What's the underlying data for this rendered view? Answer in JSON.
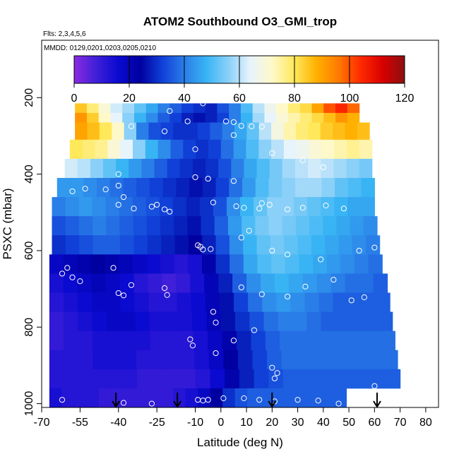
{
  "chart_data": {
    "type": "heatmap",
    "title": "ATOM2 Southbound O3_GMI_trop",
    "subtitle_flights": "Flts: 2,3,4,5,6",
    "subtitle_dates": "MMDD: 0129,0201,0203,0205,0210",
    "xlabel": "Latitude (deg N)",
    "ylabel": "PSXC (mbar)",
    "xlim": [
      -70,
      85
    ],
    "ylim": [
      1010,
      50
    ],
    "x_ticks": [
      -70,
      -55,
      -40,
      -25,
      -10,
      0,
      10,
      20,
      30,
      40,
      50,
      60,
      70,
      80
    ],
    "x_tick_labels": [
      "-70",
      "-55",
      "-40",
      "-25",
      "-10",
      "0",
      "10",
      "20",
      "30",
      "40",
      "50",
      "60",
      "70",
      "80"
    ],
    "y_ticks": [
      200,
      400,
      600,
      800,
      1000
    ],
    "y_tick_labels": [
      "200",
      "400",
      "600",
      "800",
      "1000"
    ],
    "colorbar": {
      "min": 0,
      "max": 120,
      "ticks": [
        0,
        20,
        40,
        60,
        80,
        100,
        120
      ],
      "tick_labels": [
        "0",
        "20",
        "40",
        "60",
        "80",
        "100",
        "120"
      ],
      "colors": [
        "#8a2be2",
        "#3f1fd8",
        "#0a0ad0",
        "#0000a0",
        "#1040d8",
        "#2a7ee8",
        "#38b4f4",
        "#8ad0f8",
        "#e8f4fc",
        "#fff8c8",
        "#ffe85a",
        "#ffb000",
        "#ff7a00",
        "#ff2a00",
        "#d80000",
        "#8b1010"
      ]
    },
    "legend": "colorbar-top",
    "grid": false,
    "arrows_latitude": [
      -41,
      -17,
      20,
      61
    ],
    "layers": [
      {
        "p_top": 215,
        "p_bottom": 240,
        "lat_start": -57,
        "lat_end": 54,
        "values": [
          85,
          78,
          70,
          62,
          58,
          52,
          46,
          40,
          36,
          32,
          30,
          28,
          34,
          40,
          50,
          60,
          66,
          72,
          78,
          82,
          90,
          100,
          105,
          98
        ]
      },
      {
        "p_top": 240,
        "p_bottom": 265,
        "lat_start": -57,
        "lat_end": 54,
        "values": [
          92,
          84,
          72,
          64,
          56,
          48,
          42,
          36,
          32,
          28,
          26,
          28,
          32,
          40,
          48,
          58,
          64,
          70,
          74,
          78,
          82,
          86,
          92,
          88
        ]
      },
      {
        "p_top": 265,
        "p_bottom": 310,
        "lat_start": -57,
        "lat_end": 58,
        "values": [
          90,
          86,
          80,
          72,
          56,
          40,
          34,
          32,
          30,
          30,
          32,
          36,
          40,
          46,
          52,
          60,
          68,
          74,
          78,
          80,
          84,
          86,
          88,
          86
        ]
      },
      {
        "p_top": 310,
        "p_bottom": 360,
        "lat_start": -59,
        "lat_end": 59,
        "values": [
          80,
          78,
          76,
          70,
          64,
          56,
          48,
          42,
          36,
          32,
          30,
          32,
          38,
          44,
          50,
          56,
          60,
          64,
          66,
          70,
          72,
          74,
          76,
          74
        ]
      },
      {
        "p_top": 360,
        "p_bottom": 410,
        "lat_start": -61,
        "lat_end": 59,
        "values": [
          62,
          60,
          56,
          52,
          48,
          44,
          40,
          36,
          32,
          30,
          28,
          30,
          34,
          40,
          46,
          50,
          54,
          58,
          60,
          62,
          60,
          58,
          56,
          54
        ]
      },
      {
        "p_top": 410,
        "p_bottom": 460,
        "lat_start": -64,
        "lat_end": 60,
        "values": [
          44,
          44,
          42,
          40,
          38,
          36,
          34,
          32,
          30,
          28,
          26,
          28,
          32,
          38,
          44,
          50,
          54,
          56,
          58,
          58,
          56,
          52,
          50,
          48
        ]
      },
      {
        "p_top": 460,
        "p_bottom": 510,
        "lat_start": -66,
        "lat_end": 60,
        "values": [
          40,
          42,
          44,
          42,
          40,
          38,
          36,
          34,
          32,
          30,
          28,
          30,
          34,
          42,
          48,
          52,
          56,
          56,
          54,
          52,
          50,
          48,
          46,
          46
        ]
      },
      {
        "p_top": 510,
        "p_bottom": 560,
        "lat_start": -66,
        "lat_end": 61,
        "values": [
          34,
          36,
          38,
          40,
          38,
          36,
          34,
          32,
          30,
          28,
          26,
          30,
          36,
          44,
          50,
          54,
          56,
          54,
          52,
          50,
          48,
          46,
          44,
          42
        ]
      },
      {
        "p_top": 560,
        "p_bottom": 610,
        "lat_start": -66,
        "lat_end": 62,
        "values": [
          30,
          32,
          34,
          36,
          36,
          34,
          32,
          30,
          28,
          26,
          24,
          28,
          34,
          42,
          48,
          52,
          54,
          52,
          50,
          48,
          46,
          44,
          42,
          40
        ]
      },
      {
        "p_top": 610,
        "p_bottom": 660,
        "lat_start": -67,
        "lat_end": 63,
        "values": [
          18,
          20,
          22,
          24,
          22,
          20,
          18,
          16,
          14,
          12,
          14,
          22,
          30,
          38,
          46,
          50,
          52,
          50,
          48,
          46,
          44,
          42,
          40,
          38
        ]
      },
      {
        "p_top": 660,
        "p_bottom": 710,
        "lat_start": -67,
        "lat_end": 65,
        "values": [
          14,
          16,
          18,
          20,
          18,
          16,
          12,
          10,
          8,
          10,
          14,
          20,
          28,
          36,
          42,
          46,
          48,
          46,
          44,
          42,
          40,
          38,
          38,
          36
        ]
      },
      {
        "p_top": 710,
        "p_bottom": 760,
        "lat_start": -67,
        "lat_end": 66,
        "values": [
          12,
          14,
          16,
          18,
          18,
          16,
          14,
          12,
          12,
          14,
          16,
          20,
          26,
          32,
          38,
          42,
          44,
          42,
          40,
          38,
          36,
          36,
          36,
          36
        ]
      },
      {
        "p_top": 760,
        "p_bottom": 810,
        "lat_start": -67,
        "lat_end": 67,
        "values": [
          10,
          12,
          14,
          16,
          18,
          18,
          16,
          14,
          14,
          14,
          16,
          20,
          26,
          30,
          34,
          38,
          40,
          40,
          38,
          36,
          36,
          36,
          36,
          36
        ]
      },
      {
        "p_top": 810,
        "p_bottom": 860,
        "lat_start": -67,
        "lat_end": 68,
        "values": [
          10,
          12,
          12,
          14,
          14,
          14,
          14,
          12,
          12,
          12,
          14,
          18,
          22,
          28,
          32,
          36,
          38,
          38,
          38,
          38,
          38,
          38,
          38,
          38
        ]
      },
      {
        "p_top": 860,
        "p_bottom": 910,
        "lat_start": -67,
        "lat_end": 69,
        "values": [
          12,
          12,
          12,
          14,
          14,
          14,
          12,
          12,
          12,
          12,
          14,
          18,
          24,
          28,
          32,
          36,
          38,
          38,
          38,
          38,
          38,
          38,
          38,
          38
        ]
      },
      {
        "p_top": 910,
        "p_bottom": 960,
        "lat_start": -67,
        "lat_end": 70,
        "values": [
          12,
          12,
          12,
          12,
          12,
          12,
          10,
          10,
          10,
          10,
          12,
          16,
          22,
          28,
          32,
          34,
          36,
          36,
          36,
          36,
          36,
          36,
          36,
          36
        ]
      },
      {
        "p_top": 960,
        "p_bottom": 1010,
        "lat_start": -67,
        "lat_end": 49,
        "values": [
          14,
          12,
          12,
          12,
          10,
          10,
          10,
          10,
          10,
          10,
          12,
          14,
          18,
          24,
          30,
          34,
          36,
          36,
          36,
          36,
          36,
          36,
          36,
          36
        ]
      }
    ],
    "observations": [
      [
        -7,
        215
      ],
      [
        -20,
        235
      ],
      [
        -13,
        262
      ],
      [
        2,
        262
      ],
      [
        5,
        264
      ],
      [
        8,
        274
      ],
      [
        12,
        275
      ],
      [
        16,
        276
      ],
      [
        -35,
        275
      ],
      [
        -22,
        288
      ],
      [
        5,
        298
      ],
      [
        -10,
        335
      ],
      [
        20,
        345
      ],
      [
        32,
        364
      ],
      [
        40,
        382
      ],
      [
        -53,
        438
      ],
      [
        -58,
        445
      ],
      [
        -45,
        440
      ],
      [
        -40,
        400
      ],
      [
        -40,
        430
      ],
      [
        -10,
        408
      ],
      [
        -5,
        412
      ],
      [
        5,
        418
      ],
      [
        -38,
        460
      ],
      [
        -40,
        480
      ],
      [
        -34,
        490
      ],
      [
        -27,
        485
      ],
      [
        -25,
        480
      ],
      [
        -22,
        492
      ],
      [
        -20,
        498
      ],
      [
        -3,
        474
      ],
      [
        6,
        484
      ],
      [
        9,
        488
      ],
      [
        16,
        476
      ],
      [
        15,
        490
      ],
      [
        19,
        480
      ],
      [
        26,
        492
      ],
      [
        32,
        488
      ],
      [
        41,
        482
      ],
      [
        48,
        490
      ],
      [
        -60,
        645
      ],
      [
        -62,
        660
      ],
      [
        -58,
        670
      ],
      [
        -55,
        680
      ],
      [
        -42,
        645
      ],
      [
        -35,
        690
      ],
      [
        -22,
        698
      ],
      [
        -21,
        716
      ],
      [
        -9,
        586
      ],
      [
        -8,
        590
      ],
      [
        -7,
        597
      ],
      [
        -4,
        596
      ],
      [
        8,
        566
      ],
      [
        11,
        548
      ],
      [
        20,
        600
      ],
      [
        26,
        610
      ],
      [
        39,
        623
      ],
      [
        8,
        696
      ],
      [
        16,
        714
      ],
      [
        26,
        720
      ],
      [
        33,
        694
      ],
      [
        44,
        676
      ],
      [
        51,
        730
      ],
      [
        56,
        722
      ],
      [
        54,
        600
      ],
      [
        60,
        592
      ],
      [
        -40,
        711
      ],
      [
        -38,
        717
      ],
      [
        -3,
        760
      ],
      [
        -2,
        788
      ],
      [
        5,
        835
      ],
      [
        -12,
        832
      ],
      [
        -11,
        848
      ],
      [
        13,
        808
      ],
      [
        -2,
        868
      ],
      [
        20,
        906
      ],
      [
        21,
        934
      ],
      [
        22,
        920
      ],
      [
        -9,
        990
      ],
      [
        -7,
        992
      ],
      [
        -5,
        990
      ],
      [
        1,
        986
      ],
      [
        -38,
        998
      ],
      [
        -27,
        1000
      ],
      [
        -62,
        990
      ],
      [
        9,
        986
      ],
      [
        15,
        990
      ],
      [
        21,
        994
      ],
      [
        30,
        990
      ],
      [
        38,
        992
      ],
      [
        46,
        1000
      ],
      [
        60,
        954
      ]
    ]
  }
}
